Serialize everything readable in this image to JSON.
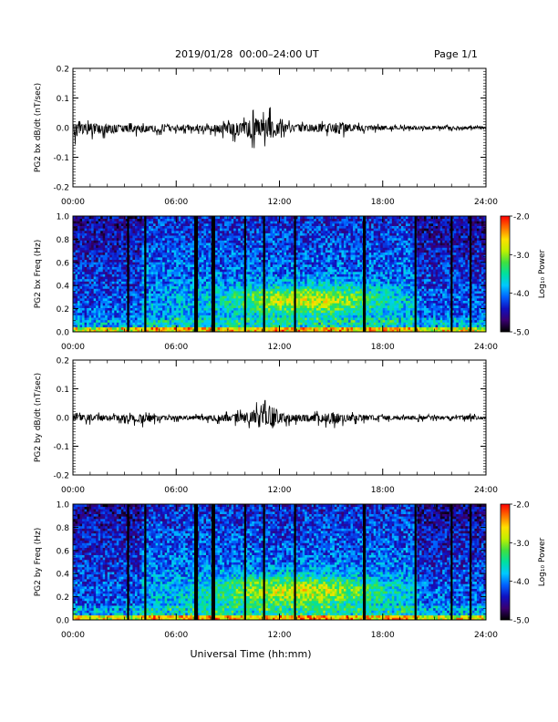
{
  "header": {
    "title": "2019/01/28  00:00–24:00 UT",
    "page": "Page 1/1"
  },
  "footer": {
    "xlabel": "Universal Time (hh:mm)"
  },
  "colorbar_label": "Log₁₀ Power",
  "colors": {
    "colormap": [
      "#000000",
      "#3a0070",
      "#1010c0",
      "#0060ff",
      "#00c8ff",
      "#00e0a0",
      "#40e040",
      "#c0f000",
      "#ffe000",
      "#ff7000",
      "#ff0000"
    ]
  },
  "chart_data": [
    {
      "type": "line",
      "ylabel": "PG2 bx dB/dt (nT/sec)",
      "xlim": [
        0,
        24
      ],
      "ylim": [
        -0.2,
        0.2
      ],
      "xticks": [
        "00:00",
        "06:00",
        "12:00",
        "18:00",
        "24:00"
      ],
      "yticks": [
        "-0.2",
        "-0.1",
        "0.0",
        "0.1",
        "0.2"
      ],
      "grid": false,
      "series": [
        {
          "x": [
            0,
            1,
            2,
            3,
            4,
            5,
            6,
            7,
            8,
            9,
            10,
            10.5,
            11,
            11.5,
            12,
            13,
            14,
            15,
            15.5,
            16,
            17,
            18,
            19,
            20,
            21,
            22,
            23,
            24
          ],
          "y": [
            0.02,
            0.025,
            0.02,
            0.015,
            0.015,
            0.012,
            0.01,
            0.01,
            0.015,
            0.025,
            0.035,
            0.06,
            0.05,
            0.07,
            0.03,
            0.02,
            0.02,
            0.025,
            0.04,
            0.02,
            0.015,
            0.012,
            0.01,
            0.01,
            0.01,
            0.008,
            0.008,
            0.008
          ],
          "ymin": [
            -0.06,
            -0.04,
            -0.035,
            -0.03,
            -0.03,
            -0.025,
            -0.02,
            -0.02,
            -0.025,
            -0.04,
            -0.06,
            -0.07,
            -0.06,
            -0.07,
            -0.035,
            -0.025,
            -0.025,
            -0.03,
            -0.04,
            -0.025,
            -0.02,
            -0.015,
            -0.012,
            -0.012,
            -0.012,
            -0.01,
            -0.01,
            -0.01
          ]
        }
      ]
    },
    {
      "type": "heatmap",
      "ylabel": "PG2 bx Freq (Hz)",
      "xlim": [
        0,
        24
      ],
      "ylim": [
        0,
        1.0
      ],
      "xticks": [
        "00:00",
        "06:00",
        "12:00",
        "18:00",
        "24:00"
      ],
      "yticks": [
        "0.0",
        "0.2",
        "0.4",
        "0.6",
        "0.8",
        "1.0"
      ],
      "colorbar": {
        "min": -5.0,
        "max": -2.0,
        "ticks": [
          "-2.0",
          "-3.0",
          "-4.0",
          "-5.0"
        ]
      },
      "hot_region": {
        "t_center": 13.5,
        "t_width": 4.5,
        "f_center": 0.28,
        "f_width": 0.12
      },
      "gaps_hours": [
        3.2,
        4.2,
        7.1,
        7.2,
        8.1,
        8.2,
        10.0,
        11.1,
        12.9,
        16.9,
        16.95,
        19.9,
        22.0,
        23.1
      ]
    },
    {
      "type": "line",
      "ylabel": "PG2 by dB/dt (nT/sec)",
      "xlim": [
        0,
        24
      ],
      "ylim": [
        -0.2,
        0.2
      ],
      "xticks": [
        "00:00",
        "06:00",
        "12:00",
        "18:00",
        "24:00"
      ],
      "yticks": [
        "-0.2",
        "-0.1",
        "0.0",
        "0.1",
        "0.2"
      ],
      "grid": false,
      "series": [
        {
          "x": [
            0,
            1,
            2,
            3,
            4,
            5,
            6,
            7,
            8,
            9,
            10,
            10.5,
            11,
            11.5,
            12,
            13,
            14,
            15,
            16,
            17,
            18,
            19,
            20,
            21,
            22,
            23,
            24
          ],
          "y": [
            0.015,
            0.02,
            0.015,
            0.015,
            0.02,
            0.012,
            0.01,
            0.012,
            0.015,
            0.02,
            0.03,
            0.06,
            0.04,
            0.1,
            0.03,
            0.02,
            0.02,
            0.035,
            0.02,
            0.015,
            0.012,
            0.01,
            0.012,
            0.01,
            0.008,
            0.015,
            0.008
          ],
          "ymin": [
            -0.02,
            -0.025,
            -0.02,
            -0.02,
            -0.035,
            -0.02,
            -0.015,
            -0.015,
            -0.02,
            -0.025,
            -0.035,
            -0.04,
            -0.03,
            -0.08,
            -0.035,
            -0.025,
            -0.025,
            -0.04,
            -0.025,
            -0.02,
            -0.015,
            -0.015,
            -0.015,
            -0.012,
            -0.012,
            -0.015,
            -0.01
          ]
        }
      ]
    },
    {
      "type": "heatmap",
      "ylabel": "PG2 by Freq (Hz)",
      "xlim": [
        0,
        24
      ],
      "ylim": [
        0,
        1.0
      ],
      "xticks": [
        "00:00",
        "06:00",
        "12:00",
        "18:00",
        "24:00"
      ],
      "yticks": [
        "0.0",
        "0.2",
        "0.4",
        "0.6",
        "0.8",
        "1.0"
      ],
      "colorbar": {
        "min": -5.0,
        "max": -2.0,
        "ticks": [
          "-2.0",
          "-3.0",
          "-4.0",
          "-5.0"
        ]
      },
      "hot_region": {
        "t_center": 13.0,
        "t_width": 5.0,
        "f_center": 0.25,
        "f_width": 0.13
      },
      "gaps_hours": [
        3.2,
        4.2,
        7.1,
        7.2,
        8.1,
        8.2,
        10.0,
        11.1,
        12.9,
        16.9,
        16.95,
        19.9,
        22.0,
        23.1
      ]
    }
  ]
}
